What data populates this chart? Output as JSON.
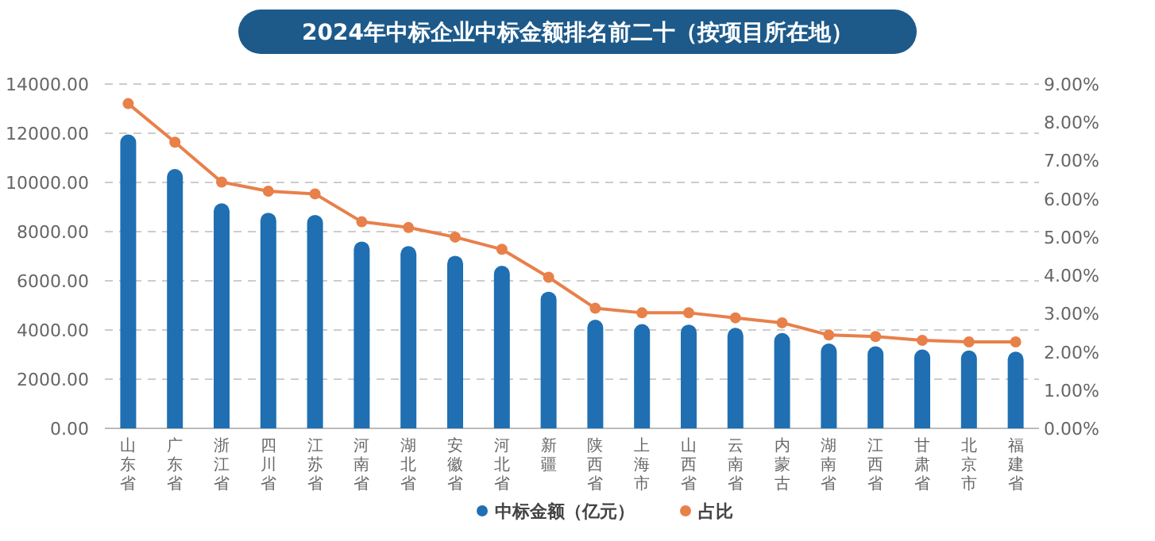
{
  "chart_data": {
    "type": "bar",
    "title": "2024年中标企业中标金额排名前二十（按项目所在地）",
    "categories": [
      "山东省",
      "广东省",
      "浙江省",
      "四川省",
      "江苏省",
      "河南省",
      "湖北省",
      "安徽省",
      "河北省",
      "新疆",
      "陕西省",
      "上海市",
      "山西省",
      "云南省",
      "内蒙古",
      "湖南省",
      "江西省",
      "甘肃省",
      "北京市",
      "福建省"
    ],
    "series": [
      {
        "name": "中标金额（亿元）",
        "color": "#1f6fb2",
        "values": [
          11950,
          10550,
          9150,
          8770,
          8680,
          7600,
          7410,
          7020,
          6610,
          5560,
          4420,
          4240,
          4220,
          4090,
          3880,
          3450,
          3340,
          3210,
          3170,
          3120
        ]
      },
      {
        "name": "占比",
        "type": "line",
        "axis": "y2",
        "color": "#e8804a",
        "marker": "circle",
        "values": [
          8.49,
          7.48,
          6.44,
          6.2,
          6.13,
          5.4,
          5.25,
          5.0,
          4.68,
          3.95,
          3.14,
          3.02,
          3.02,
          2.89,
          2.76,
          2.44,
          2.4,
          2.3,
          2.26,
          2.26
        ]
      }
    ],
    "ylim": [
      0,
      14000
    ],
    "yticks": [
      {
        "value": 0,
        "label": "0.00"
      },
      {
        "value": 2000,
        "label": "2000.00"
      },
      {
        "value": 4000,
        "label": "4000.00"
      },
      {
        "value": 6000,
        "label": "6000.00"
      },
      {
        "value": 8000,
        "label": "8000.00"
      },
      {
        "value": 10000,
        "label": "10000.00"
      },
      {
        "value": 12000,
        "label": "12000.00"
      },
      {
        "value": 14000,
        "label": "14000.00"
      }
    ],
    "y2lim": [
      0,
      9
    ],
    "y2ticks": [
      {
        "value": 0,
        "label": "0.00%"
      },
      {
        "value": 1,
        "label": "1.00%"
      },
      {
        "value": 2,
        "label": "2.00%"
      },
      {
        "value": 3,
        "label": "3.00%"
      },
      {
        "value": 4,
        "label": "4.00%"
      },
      {
        "value": 5,
        "label": "5.00%"
      },
      {
        "value": 6,
        "label": "6.00%"
      },
      {
        "value": 7,
        "label": "7.00%"
      },
      {
        "value": 8,
        "label": "8.00%"
      },
      {
        "value": 9,
        "label": "9.00%"
      }
    ],
    "grid": "y",
    "legend": "bottom"
  }
}
